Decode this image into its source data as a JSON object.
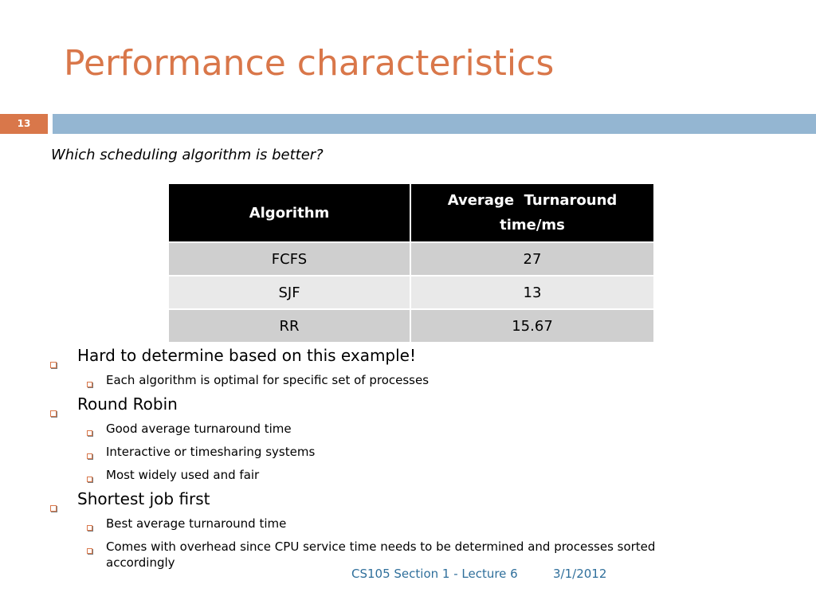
{
  "title": "Performance characteristics",
  "slide_number": "13",
  "question": "Which scheduling algorithm is better?",
  "table": {
    "headers": [
      "Algorithm",
      "Average  Turnaround",
      "time/ms"
    ],
    "rows": [
      [
        "FCFS",
        "27"
      ],
      [
        "SJF",
        "13"
      ],
      [
        "RR",
        "15.67"
      ]
    ]
  },
  "bullets": [
    {
      "text": "Hard to determine based on this example!",
      "sub": [
        "Each algorithm is optimal for specific set of processes"
      ]
    },
    {
      "text": "Round Robin",
      "sub": [
        "Good average turnaround time",
        "Interactive or timesharing systems",
        "Most widely used and fair"
      ]
    },
    {
      "text": "Shortest job first",
      "sub": [
        "Best average turnaround time",
        "Comes with overhead since CPU service time needs to be determined and processes sorted",
        "accordingly"
      ]
    }
  ],
  "footer": {
    "course": "CS105 Section 1 - Lecture 6",
    "date": "3/1/2012"
  },
  "colors": {
    "accent": "#d9774a",
    "bar": "#94b6d2",
    "footer_text": "#2f6f9b"
  },
  "icons": {
    "bullet": "square-bullet-icon"
  }
}
